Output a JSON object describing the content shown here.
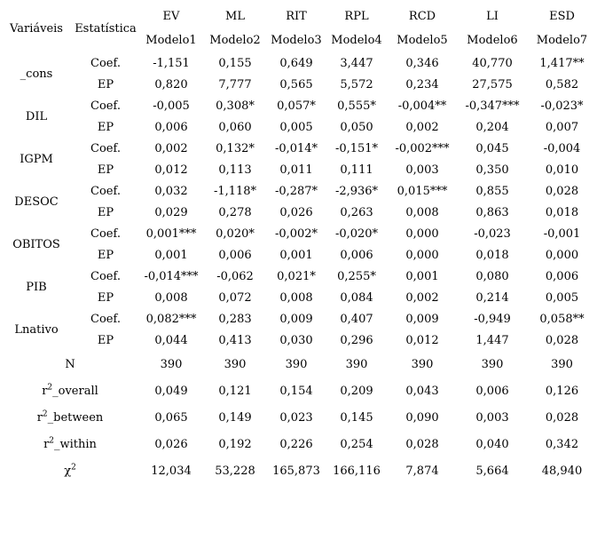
{
  "table": {
    "header": {
      "variavel": "Variáveis",
      "estatistica": "Estatística",
      "models": [
        {
          "group": "EV",
          "model": "Modelo1"
        },
        {
          "group": "ML",
          "model": "Modelo2"
        },
        {
          "group": "RIT",
          "model": "Modelo3"
        },
        {
          "group": "RPL",
          "model": "Modelo4"
        },
        {
          "group": "RCD",
          "model": "Modelo5"
        },
        {
          "group": "LI",
          "model": "Modelo6"
        },
        {
          "group": "ESD",
          "model": "Modelo7"
        }
      ]
    },
    "coef_label": "Coef.",
    "ep_label": "EP",
    "variables": [
      {
        "name": "_cons",
        "coef": [
          "-1,151",
          "0,155",
          "0,649",
          "3,447",
          "0,346",
          "40,770",
          "1,417**"
        ],
        "ep": [
          "0,820",
          "7,777",
          "0,565",
          "5,572",
          "0,234",
          "27,575",
          "0,582"
        ]
      },
      {
        "name": "DIL",
        "coef": [
          "-0,005",
          "0,308*",
          "0,057*",
          "0,555*",
          "-0,004**",
          "-0,347***",
          "-0,023*"
        ],
        "ep": [
          "0,006",
          "0,060",
          "0,005",
          "0,050",
          "0,002",
          "0,204",
          "0,007"
        ]
      },
      {
        "name": "IGPM",
        "coef": [
          "0,002",
          "0,132*",
          "-0,014*",
          "-0,151*",
          "-0,002***",
          "0,045",
          "-0,004"
        ],
        "ep": [
          "0,012",
          "0,113",
          "0,011",
          "0,111",
          "0,003",
          "0,350",
          "0,010"
        ]
      },
      {
        "name": "DESOC",
        "coef": [
          "0,032",
          "-1,118*",
          "-0,287*",
          "-2,936*",
          "0,015***",
          "0,855",
          "0,028"
        ],
        "ep": [
          "0,029",
          "0,278",
          "0,026",
          "0,263",
          "0,008",
          "0,863",
          "0,018"
        ]
      },
      {
        "name": "OBITOS",
        "coef": [
          "0,001***",
          "0,020*",
          "-0,002*",
          "-0,020*",
          "0,000",
          "-0,023",
          "-0,001"
        ],
        "ep": [
          "0,001",
          "0,006",
          "0,001",
          "0,006",
          "0,000",
          "0,018",
          "0,000"
        ]
      },
      {
        "name": "PIB",
        "coef": [
          "-0,014***",
          "-0,062",
          "0,021*",
          "0,255*",
          "0,001",
          "0,080",
          "0,006"
        ],
        "ep": [
          "0,008",
          "0,072",
          "0,008",
          "0,084",
          "0,002",
          "0,214",
          "0,005"
        ]
      },
      {
        "name": "Lnativo",
        "coef": [
          "0,082***",
          "0,283",
          "0,009",
          "0,407",
          "0,009",
          "-0,949",
          "0,058**"
        ],
        "ep": [
          "0,044",
          "0,413",
          "0,030",
          "0,296",
          "0,012",
          "1,447",
          "0,028"
        ]
      }
    ],
    "summary": [
      {
        "label": {
          "pre": "N",
          "sup": "",
          "post": ""
        },
        "values": [
          "390",
          "390",
          "390",
          "390",
          "390",
          "390",
          "390"
        ]
      },
      {
        "label": {
          "pre": "r",
          "sup": "2",
          "post": "_overall"
        },
        "values": [
          "0,049",
          "0,121",
          "0,154",
          "0,209",
          "0,043",
          "0,006",
          "0,126"
        ]
      },
      {
        "label": {
          "pre": "r",
          "sup": "2",
          "post": "_between"
        },
        "values": [
          "0,065",
          "0,149",
          "0,023",
          "0,145",
          "0,090",
          "0,003",
          "0,028"
        ]
      },
      {
        "label": {
          "pre": "r",
          "sup": "2",
          "post": "_within"
        },
        "values": [
          "0,026",
          "0,192",
          "0,226",
          "0,254",
          "0,028",
          "0,040",
          "0,342"
        ]
      },
      {
        "label": {
          "pre": "χ",
          "sup": "2",
          "post": ""
        },
        "values": [
          "12,034",
          "53,228",
          "165,873",
          "166,116",
          "7,874",
          "5,664",
          "48,940"
        ]
      }
    ]
  }
}
